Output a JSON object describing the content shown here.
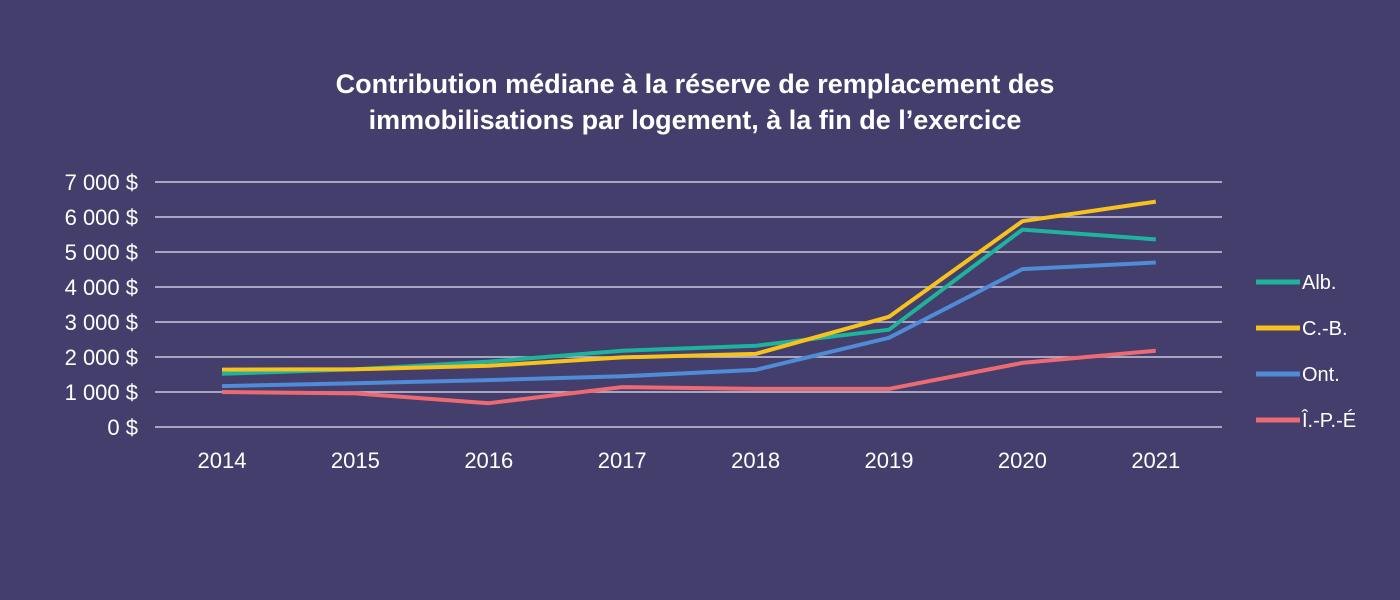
{
  "chart_data": {
    "type": "line",
    "title_lines": [
      "Contribution médiane à la réserve de remplacement des",
      "immobilisations par logement, à la fin de l’exercice"
    ],
    "xlabel": "",
    "ylabel": "",
    "categories": [
      "2014",
      "2015",
      "2016",
      "2017",
      "2018",
      "2019",
      "2020",
      "2021"
    ],
    "ylim": [
      0,
      7000
    ],
    "yticks": [
      0,
      1000,
      2000,
      3000,
      4000,
      5000,
      6000,
      7000
    ],
    "ytick_labels": [
      "0 $",
      "1 000 $",
      "2 000 $",
      "3 000 $",
      "4 000 $",
      "5 000 $",
      "6 000 $",
      "7 000 $"
    ],
    "grid": true,
    "legend_position": "right",
    "series": [
      {
        "name": "Alb.",
        "color": "#1fb39c",
        "values": [
          1520,
          1650,
          1870,
          2180,
          2320,
          2780,
          5640,
          5360
        ]
      },
      {
        "name": "C.-B.",
        "color": "#f8c21c",
        "values": [
          1640,
          1650,
          1750,
          1990,
          2090,
          3150,
          5880,
          6440
        ]
      },
      {
        "name": "Ont.",
        "color": "#4f8bd6",
        "values": [
          1170,
          1250,
          1340,
          1450,
          1630,
          2550,
          4510,
          4700
        ]
      },
      {
        "name": "Î.-P.-É",
        "color": "#ec6b73",
        "values": [
          1000,
          960,
          680,
          1140,
          1090,
          1090,
          1830,
          2180
        ]
      }
    ]
  }
}
